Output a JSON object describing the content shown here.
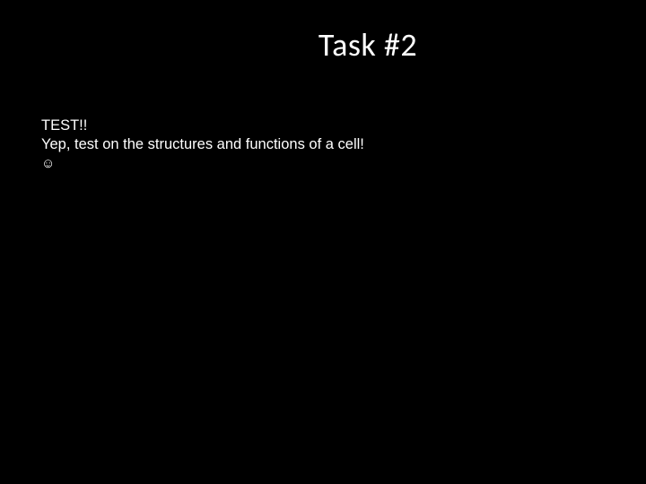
{
  "slide": {
    "title": "Task #2",
    "body": {
      "line1": "TEST!!",
      "line2": "Yep, test on the structures and functions of a cell!",
      "line3": "☺"
    },
    "colors": {
      "background": "#000000",
      "text": "#ffffff"
    },
    "typography": {
      "title_fontsize": 36,
      "body_fontsize": 16.5,
      "title_font": "Calibri",
      "body_font": "Verdana"
    }
  }
}
